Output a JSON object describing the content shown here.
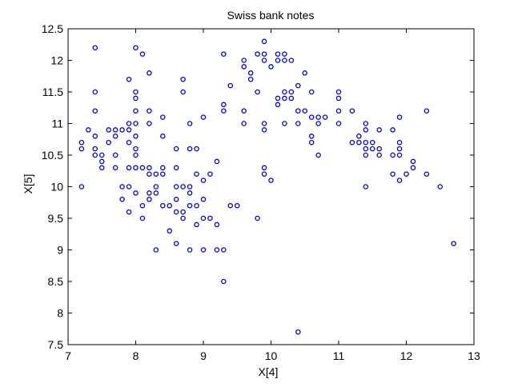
{
  "chart_data": {
    "type": "scatter",
    "title": "Swiss bank notes",
    "xlabel": "X[4]",
    "ylabel": "X[5]",
    "xlim": [
      7,
      13
    ],
    "ylim": [
      7.5,
      12.5
    ],
    "xticks": [
      7,
      8,
      9,
      10,
      11,
      12,
      13
    ],
    "yticks": [
      7.5,
      8,
      8.5,
      9,
      9.5,
      10,
      10.5,
      11,
      11.5,
      12,
      12.5
    ],
    "marker_color": "#0000cc",
    "grid": false,
    "points": [
      [
        7.2,
        10.7
      ],
      [
        7.2,
        10.6
      ],
      [
        7.2,
        10.0
      ],
      [
        7.3,
        10.9
      ],
      [
        7.4,
        12.2
      ],
      [
        7.4,
        11.5
      ],
      [
        7.4,
        11.2
      ],
      [
        7.4,
        10.8
      ],
      [
        7.4,
        10.6
      ],
      [
        7.4,
        10.5
      ],
      [
        7.5,
        10.5
      ],
      [
        7.5,
        10.4
      ],
      [
        7.5,
        10.3
      ],
      [
        7.6,
        10.9
      ],
      [
        7.6,
        10.7
      ],
      [
        7.7,
        10.9
      ],
      [
        7.7,
        10.8
      ],
      [
        7.7,
        10.5
      ],
      [
        7.7,
        10.3
      ],
      [
        7.8,
        10.9
      ],
      [
        7.8,
        10.0
      ],
      [
        7.8,
        9.8
      ],
      [
        7.9,
        11.7
      ],
      [
        7.9,
        11.0
      ],
      [
        7.9,
        10.9
      ],
      [
        7.9,
        10.7
      ],
      [
        7.9,
        10.3
      ],
      [
        7.9,
        10.0
      ],
      [
        7.9,
        9.6
      ],
      [
        8.0,
        12.2
      ],
      [
        8.0,
        11.5
      ],
      [
        8.0,
        11.4
      ],
      [
        8.0,
        11.2
      ],
      [
        8.0,
        11.0
      ],
      [
        8.0,
        10.8
      ],
      [
        8.0,
        10.6
      ],
      [
        8.0,
        10.5
      ],
      [
        8.0,
        10.3
      ],
      [
        8.0,
        9.9
      ],
      [
        8.1,
        12.1
      ],
      [
        8.1,
        10.3
      ],
      [
        8.1,
        9.7
      ],
      [
        8.1,
        9.5
      ],
      [
        8.2,
        11.8
      ],
      [
        8.2,
        11.2
      ],
      [
        8.2,
        11.0
      ],
      [
        8.2,
        10.3
      ],
      [
        8.2,
        10.2
      ],
      [
        8.2,
        9.9
      ],
      [
        8.2,
        9.8
      ],
      [
        8.3,
        10.2
      ],
      [
        8.3,
        10.0
      ],
      [
        8.3,
        9.9
      ],
      [
        8.3,
        9.0
      ],
      [
        8.4,
        11.1
      ],
      [
        8.4,
        10.8
      ],
      [
        8.4,
        10.3
      ],
      [
        8.4,
        10.2
      ],
      [
        8.4,
        9.7
      ],
      [
        8.5,
        9.7
      ],
      [
        8.5,
        9.3
      ],
      [
        8.6,
        10.6
      ],
      [
        8.6,
        10.3
      ],
      [
        8.6,
        10.0
      ],
      [
        8.6,
        9.8
      ],
      [
        8.6,
        9.6
      ],
      [
        8.6,
        9.1
      ],
      [
        8.7,
        11.7
      ],
      [
        8.7,
        11.5
      ],
      [
        8.7,
        10.0
      ],
      [
        8.7,
        9.6
      ],
      [
        8.7,
        9.5
      ],
      [
        8.8,
        11.0
      ],
      [
        8.8,
        10.6
      ],
      [
        8.8,
        10.0
      ],
      [
        8.8,
        9.9
      ],
      [
        8.8,
        9.7
      ],
      [
        8.8,
        9.0
      ],
      [
        8.9,
        10.6
      ],
      [
        8.9,
        10.2
      ],
      [
        8.9,
        9.7
      ],
      [
        8.9,
        9.4
      ],
      [
        9.0,
        11.1
      ],
      [
        9.0,
        10.1
      ],
      [
        9.0,
        9.8
      ],
      [
        9.0,
        9.5
      ],
      [
        9.0,
        9.0
      ],
      [
        9.1,
        10.2
      ],
      [
        9.1,
        9.5
      ],
      [
        9.2,
        10.4
      ],
      [
        9.2,
        9.4
      ],
      [
        9.2,
        9.0
      ],
      [
        9.3,
        12.1
      ],
      [
        9.3,
        11.3
      ],
      [
        9.3,
        11.2
      ],
      [
        9.3,
        9.0
      ],
      [
        9.3,
        8.5
      ],
      [
        9.4,
        11.6
      ],
      [
        9.4,
        9.7
      ],
      [
        9.5,
        9.7
      ],
      [
        9.6,
        12.0
      ],
      [
        9.6,
        11.9
      ],
      [
        9.6,
        11.2
      ],
      [
        9.6,
        11.0
      ],
      [
        9.7,
        11.8
      ],
      [
        9.7,
        11.7
      ],
      [
        9.8,
        12.1
      ],
      [
        9.8,
        11.5
      ],
      [
        9.8,
        9.5
      ],
      [
        9.9,
        12.3
      ],
      [
        9.9,
        12.1
      ],
      [
        9.9,
        12.0
      ],
      [
        9.9,
        11.0
      ],
      [
        9.9,
        10.9
      ],
      [
        9.9,
        10.3
      ],
      [
        9.9,
        10.2
      ],
      [
        10.0,
        11.9
      ],
      [
        10.0,
        10.1
      ],
      [
        10.1,
        12.1
      ],
      [
        10.1,
        12.0
      ],
      [
        10.1,
        11.4
      ],
      [
        10.1,
        11.3
      ],
      [
        10.2,
        12.1
      ],
      [
        10.2,
        12.0
      ],
      [
        10.2,
        11.5
      ],
      [
        10.2,
        11.4
      ],
      [
        10.2,
        11.0
      ],
      [
        10.3,
        12.0
      ],
      [
        10.3,
        11.5
      ],
      [
        10.3,
        11.4
      ],
      [
        10.4,
        11.6
      ],
      [
        10.4,
        11.2
      ],
      [
        10.4,
        11.0
      ],
      [
        10.4,
        7.7
      ],
      [
        10.5,
        11.8
      ],
      [
        10.5,
        11.2
      ],
      [
        10.6,
        11.5
      ],
      [
        10.6,
        11.1
      ],
      [
        10.6,
        10.8
      ],
      [
        10.6,
        10.7
      ],
      [
        10.7,
        11.1
      ],
      [
        10.7,
        11.0
      ],
      [
        10.7,
        10.5
      ],
      [
        10.8,
        11.1
      ],
      [
        11.0,
        11.5
      ],
      [
        11.0,
        11.4
      ],
      [
        11.0,
        11.2
      ],
      [
        11.0,
        11.0
      ],
      [
        11.2,
        11.2
      ],
      [
        11.2,
        10.7
      ],
      [
        11.3,
        10.8
      ],
      [
        11.3,
        10.7
      ],
      [
        11.4,
        11.0
      ],
      [
        11.4,
        10.9
      ],
      [
        11.4,
        10.7
      ],
      [
        11.4,
        10.6
      ],
      [
        11.4,
        10.5
      ],
      [
        11.4,
        10.0
      ],
      [
        11.5,
        10.7
      ],
      [
        11.5,
        10.6
      ],
      [
        11.6,
        10.9
      ],
      [
        11.6,
        10.6
      ],
      [
        11.6,
        10.5
      ],
      [
        11.8,
        10.9
      ],
      [
        11.8,
        10.5
      ],
      [
        11.8,
        10.2
      ],
      [
        11.9,
        11.1
      ],
      [
        11.9,
        10.7
      ],
      [
        11.9,
        10.6
      ],
      [
        11.9,
        10.5
      ],
      [
        11.9,
        10.1
      ],
      [
        12.0,
        10.2
      ],
      [
        12.1,
        10.4
      ],
      [
        12.1,
        10.3
      ],
      [
        12.3,
        11.2
      ],
      [
        12.3,
        10.2
      ],
      [
        12.5,
        10.0
      ],
      [
        12.7,
        9.1
      ]
    ]
  }
}
